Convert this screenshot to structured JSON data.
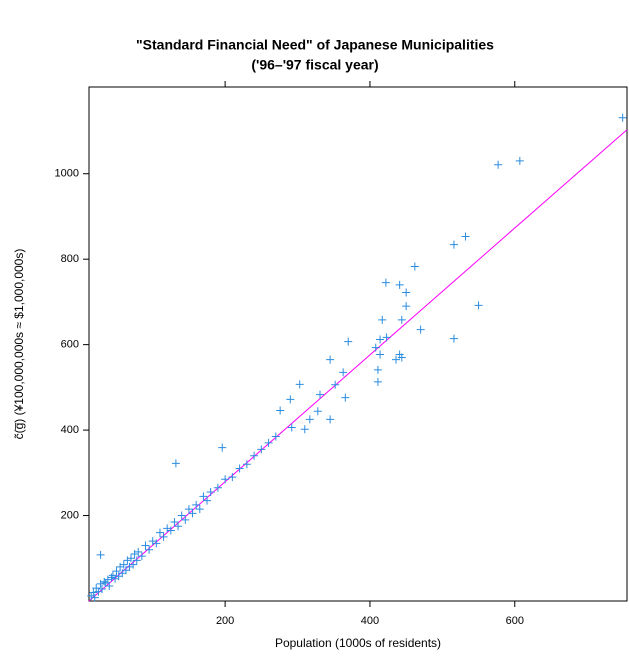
{
  "chart_data": {
    "type": "scatter",
    "title": "\"Standard Financial Need\" of Japanese Municipalities",
    "subtitle": "('96–'97 fiscal year)",
    "x_label": "Population (1000s of residents)",
    "y_label": "c̃(g̅)   (¥100,000,000s ≈ $1,000,000s)",
    "xlim": [
      12,
      755
    ],
    "ylim": [
      0,
      1203
    ],
    "xticks": [
      200,
      400,
      600
    ],
    "yticks": [
      200,
      400,
      600,
      800,
      1000
    ],
    "series": [
      {
        "color": "#2b8ce0",
        "x": [
          15,
          18,
          20,
          22,
          25,
          28,
          30,
          33,
          35,
          38,
          40,
          43,
          45,
          48,
          50,
          53,
          55,
          58,
          60,
          63,
          65,
          68,
          70,
          73,
          75,
          78,
          80,
          85,
          90,
          95,
          100,
          105,
          110,
          115,
          120,
          125,
          130,
          135,
          140,
          145,
          150,
          155,
          160,
          165,
          170,
          175,
          180,
          190,
          200,
          210,
          220,
          230,
          240,
          250,
          260,
          270,
          28,
          196,
          132,
          749,
          607,
          577,
          516,
          532,
          550,
          516,
          470,
          462,
          450,
          441,
          422,
          450,
          444,
          417,
          414,
          423,
          408,
          414,
          411,
          411,
          441,
          436,
          444,
          370,
          345,
          363,
          352,
          366,
          345,
          328,
          331,
          303,
          290,
          310,
          292,
          317,
          276
        ],
        "values": [
          12,
          20,
          8,
          30,
          22,
          40,
          28,
          45,
          42,
          50,
          35,
          55,
          60,
          52,
          70,
          58,
          80,
          65,
          85,
          72,
          95,
          80,
          100,
          85,
          110,
          95,
          115,
          105,
          130,
          120,
          140,
          135,
          160,
          150,
          170,
          165,
          185,
          175,
          200,
          190,
          215,
          205,
          225,
          215,
          245,
          235,
          255,
          265,
          285,
          290,
          310,
          320,
          340,
          355,
          370,
          385,
          108,
          359,
          322,
          1131,
          1030,
          1021,
          834,
          853,
          692,
          614,
          635,
          783,
          722,
          740,
          745,
          690,
          658,
          658,
          612,
          617,
          593,
          577,
          541,
          513,
          577,
          565,
          570,
          607,
          565,
          535,
          506,
          476,
          425,
          444,
          483,
          507,
          472,
          402,
          406,
          425,
          446
        ]
      }
    ],
    "reference_line": {
      "color": "#ff00ff",
      "x": [
        12,
        755
      ],
      "values": [
        0,
        1103
      ]
    }
  }
}
